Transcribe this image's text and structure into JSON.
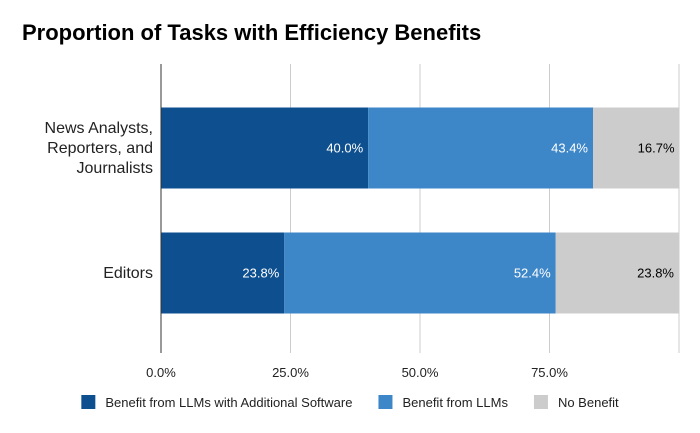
{
  "chart_data": {
    "type": "bar",
    "orientation": "horizontal",
    "stacked": true,
    "title": "Proportion of Tasks with Efficiency Benefits",
    "xlabel": "",
    "ylabel": "",
    "xlim": [
      0,
      1
    ],
    "xticks": [
      0,
      0.25,
      0.5,
      0.75,
      1.0
    ],
    "xtick_labels": [
      "0.0%",
      "25.0%",
      "50.0%",
      "75.0%",
      ""
    ],
    "grid": true,
    "legend_position": "bottom",
    "categories": [
      [
        "News Analysts,",
        "Reporters, and",
        "Journalists"
      ],
      [
        "Editors"
      ]
    ],
    "series": [
      {
        "name": "Benefit from LLMs with Additional Software",
        "color": "#0d4f8f",
        "label_color": "#ffffff",
        "values": [
          0.4,
          0.238
        ],
        "labels": [
          "40.0%",
          "23.8%"
        ]
      },
      {
        "name": "Benefit from LLMs",
        "color": "#3d86c8",
        "label_color": "#ffffff",
        "values": [
          0.434,
          0.524
        ],
        "labels": [
          "43.4%",
          "52.4%"
        ]
      },
      {
        "name": "No Benefit",
        "color": "#cccccc",
        "label_color": "#000000",
        "values": [
          0.167,
          0.238
        ],
        "labels": [
          "16.7%",
          "23.8%"
        ]
      }
    ]
  }
}
